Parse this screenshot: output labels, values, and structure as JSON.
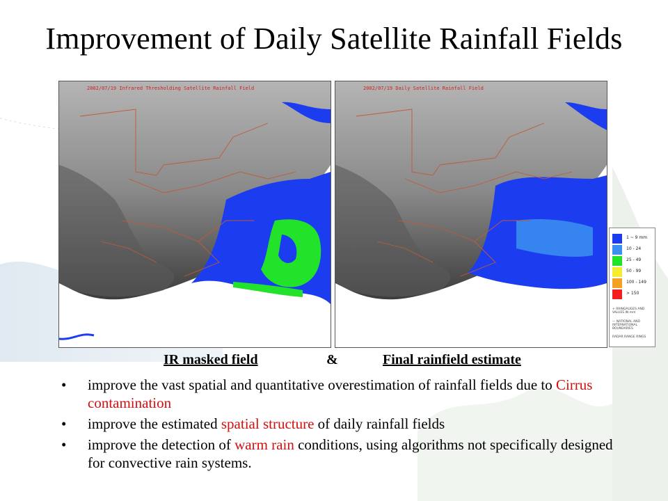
{
  "title": "Improvement of Daily Satellite Rainfall Fields",
  "maps": [
    {
      "label": "2002/07/19 Infrared Thresholding Satellite Rainfall Field",
      "caption": "IR masked field"
    },
    {
      "label": "2002/07/19 Daily Satellite Rainfall Field",
      "caption": "Final rainfield estimate"
    }
  ],
  "caption_separator": "&",
  "legend": {
    "items": [
      {
        "label": "1 ~ 9 mm",
        "color": "#1c3cf0"
      },
      {
        "label": "10 - 24",
        "color": "#3a90f0"
      },
      {
        "label": "25 - 49",
        "color": "#22e22a"
      },
      {
        "label": "50 - 99",
        "color": "#f4ec2c"
      },
      {
        "label": "100 - 149",
        "color": "#f5a020"
      },
      {
        "label": "> 150",
        "color": "#f02020"
      }
    ],
    "notes": [
      "+ RAINGAUGES AND VALUES IN mm",
      "— NATIONAL AND INTERNATIONAL BOUNDARIES",
      "RADAR RANGE RINGS"
    ]
  },
  "bullets": [
    {
      "before": "improve the vast spatial and quantitative overestimation of rainfall fields due to ",
      "highlight": "Cirrus contamination",
      "after": ""
    },
    {
      "before": "improve the estimated ",
      "highlight": "spatial structure",
      "after": " of daily rainfall fields"
    },
    {
      "before": "improve the detection of ",
      "highlight": "warm rain",
      "after": " conditions, using algorithms not specifically designed for convective rain systems."
    }
  ],
  "colors": {
    "highlight": "#d01010",
    "rain_low": "#1c3cf0",
    "rain_mid": "#3a90f0",
    "rain_high": "#22e22a"
  }
}
